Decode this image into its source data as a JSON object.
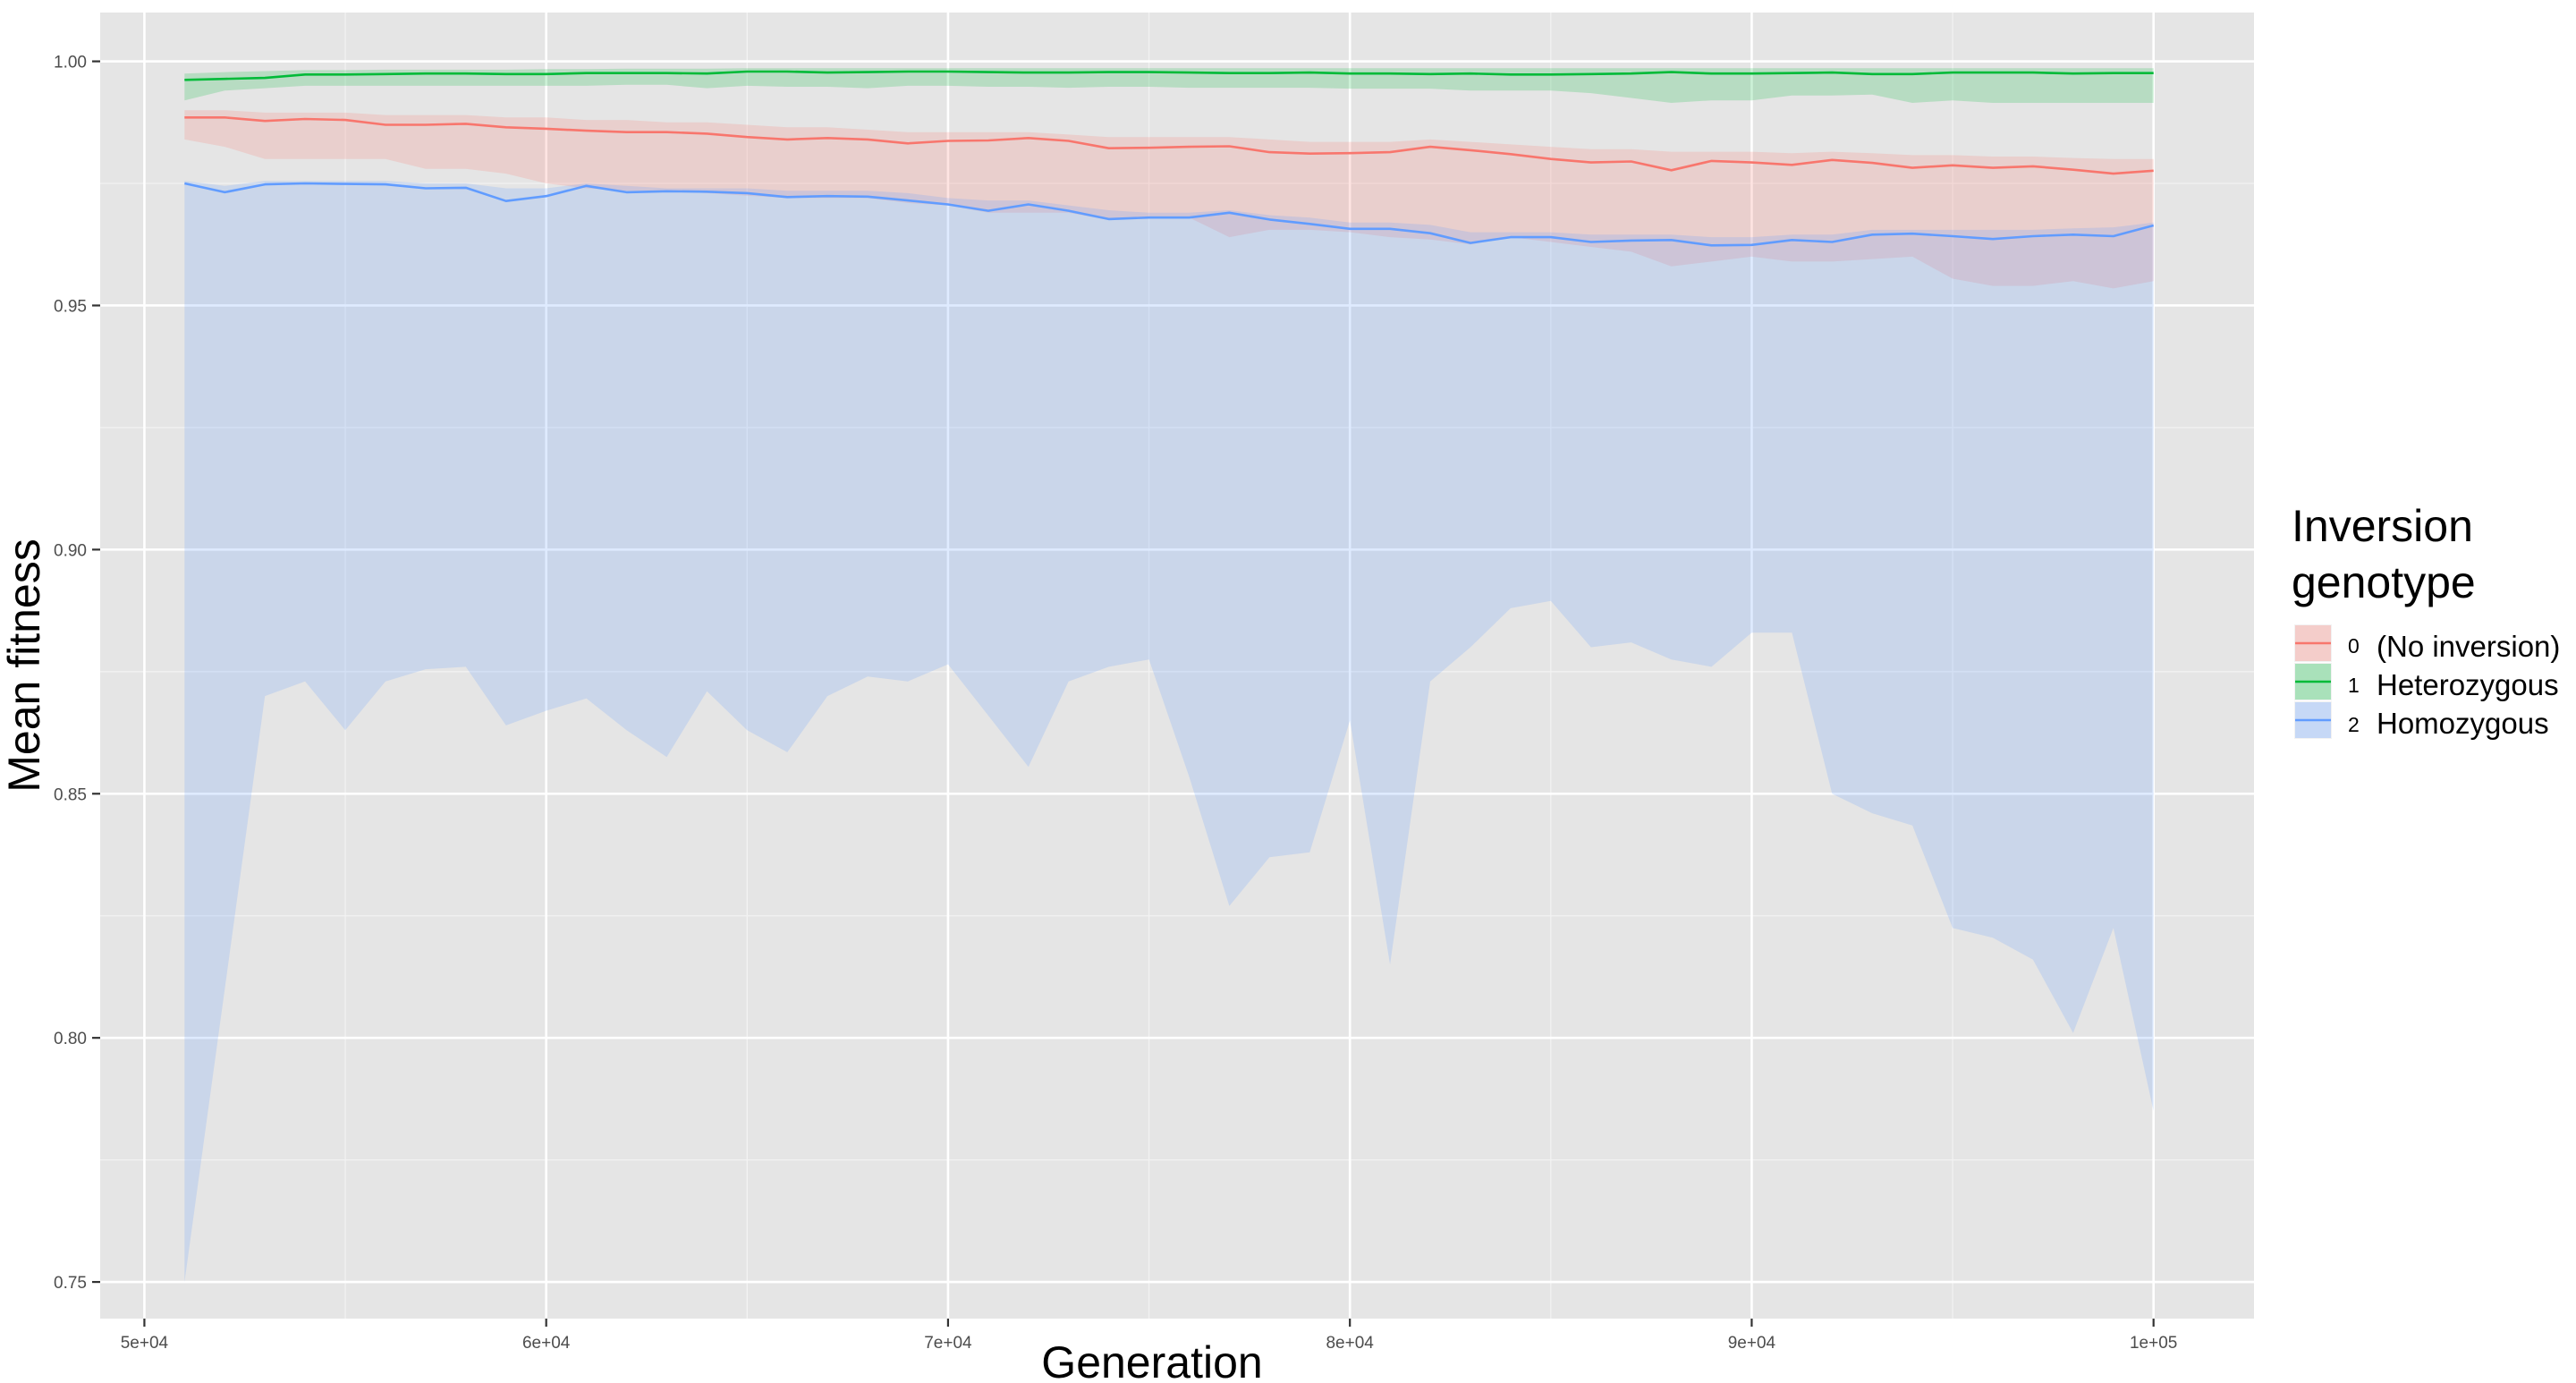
{
  "chart_data": {
    "type": "line",
    "title": "",
    "xlabel": "Generation",
    "ylabel": "Mean fitness",
    "xlim": [
      48900,
      102500
    ],
    "ylim": [
      0.7425,
      1.01
    ],
    "x_ticks": [
      50000,
      60000,
      70000,
      80000,
      90000,
      100000
    ],
    "x_tick_labels": [
      "5e+04",
      "6e+04",
      "7e+04",
      "8e+04",
      "9e+04",
      "1e+05"
    ],
    "y_ticks": [
      0.75,
      0.8,
      0.85,
      0.9,
      0.95,
      1.0
    ],
    "y_tick_labels": [
      "0.75",
      "0.80",
      "0.85",
      "0.90",
      "0.95",
      "1.00"
    ],
    "grid": true,
    "legend": {
      "title_lines": [
        "Inversion",
        "genotype"
      ],
      "position": "right",
      "entries": [
        {
          "code": "0",
          "label": "(No inversion)"
        },
        {
          "code": "1",
          "label": "Heterozygous"
        },
        {
          "code": "2",
          "label": "Homozygous"
        }
      ]
    },
    "x": [
      51000,
      52000,
      53000,
      54000,
      55000,
      56000,
      57000,
      58000,
      59000,
      60000,
      61000,
      62000,
      63000,
      64000,
      65000,
      66000,
      67000,
      68000,
      69000,
      70000,
      71000,
      72000,
      73000,
      74000,
      75000,
      76000,
      77000,
      78000,
      79000,
      80000,
      81000,
      82000,
      83000,
      84000,
      85000,
      86000,
      87000,
      88000,
      89000,
      90000,
      91000,
      92000,
      93000,
      94000,
      95000,
      96000,
      97000,
      98000,
      99000,
      100000
    ],
    "series": [
      {
        "code": "0",
        "color": "#F8766D",
        "ribbon_color": "#F8766D",
        "values": [
          0.9885,
          0.9885,
          0.9878,
          0.9882,
          0.988,
          0.987,
          0.987,
          0.9872,
          0.9865,
          0.9862,
          0.9858,
          0.9855,
          0.9855,
          0.9852,
          0.9845,
          0.984,
          0.9843,
          0.984,
          0.9832,
          0.9837,
          0.9838,
          0.9843,
          0.9837,
          0.9822,
          0.9823,
          0.9825,
          0.9826,
          0.9814,
          0.9811,
          0.9812,
          0.9814,
          0.9825,
          0.9818,
          0.981,
          0.98,
          0.9793,
          0.9795,
          0.9777,
          0.9796,
          0.9793,
          0.9788,
          0.9798,
          0.9792,
          0.9782,
          0.9787,
          0.9782,
          0.9785,
          0.9778,
          0.977,
          0.9776
        ],
        "lower": [
          0.984,
          0.9825,
          0.98,
          0.98,
          0.98,
          0.98,
          0.978,
          0.978,
          0.977,
          0.975,
          0.974,
          0.9735,
          0.9735,
          0.973,
          0.9725,
          0.972,
          0.972,
          0.972,
          0.971,
          0.9705,
          0.969,
          0.969,
          0.969,
          0.9675,
          0.968,
          0.968,
          0.964,
          0.9655,
          0.9655,
          0.965,
          0.964,
          0.9635,
          0.9625,
          0.964,
          0.963,
          0.962,
          0.961,
          0.958,
          0.959,
          0.96,
          0.959,
          0.959,
          0.9595,
          0.96,
          0.9555,
          0.954,
          0.954,
          0.955,
          0.9535,
          0.955
        ],
        "upper": [
          0.99,
          0.99,
          0.9895,
          0.9895,
          0.9895,
          0.989,
          0.989,
          0.989,
          0.9885,
          0.9885,
          0.988,
          0.988,
          0.9875,
          0.9875,
          0.987,
          0.9865,
          0.9865,
          0.986,
          0.9855,
          0.9855,
          0.9855,
          0.9855,
          0.985,
          0.9845,
          0.9845,
          0.9845,
          0.9845,
          0.984,
          0.9835,
          0.9835,
          0.9835,
          0.984,
          0.9835,
          0.983,
          0.9825,
          0.982,
          0.982,
          0.9815,
          0.9815,
          0.9815,
          0.9812,
          0.9815,
          0.9812,
          0.9808,
          0.9808,
          0.9805,
          0.9805,
          0.9802,
          0.98,
          0.98
        ]
      },
      {
        "code": "1",
        "color": "#00BA38",
        "ribbon_color": "#00BA38",
        "values": [
          0.9962,
          0.9964,
          0.9966,
          0.9973,
          0.9973,
          0.9974,
          0.9975,
          0.9975,
          0.9974,
          0.9974,
          0.9976,
          0.9976,
          0.9976,
          0.9975,
          0.9979,
          0.9979,
          0.9977,
          0.9978,
          0.9979,
          0.9979,
          0.9978,
          0.9977,
          0.9977,
          0.9978,
          0.9978,
          0.9977,
          0.9976,
          0.9976,
          0.9977,
          0.9975,
          0.9975,
          0.9974,
          0.9975,
          0.9973,
          0.9973,
          0.9974,
          0.9975,
          0.9978,
          0.9975,
          0.9975,
          0.9976,
          0.9977,
          0.9974,
          0.9974,
          0.9977,
          0.9977,
          0.9977,
          0.9975,
          0.9976,
          0.9976
        ],
        "lower": [
          0.992,
          0.994,
          0.9945,
          0.995,
          0.995,
          0.995,
          0.995,
          0.995,
          0.995,
          0.995,
          0.995,
          0.9952,
          0.9952,
          0.9945,
          0.995,
          0.9948,
          0.9948,
          0.9945,
          0.995,
          0.995,
          0.9948,
          0.9948,
          0.9946,
          0.9948,
          0.9948,
          0.9946,
          0.9946,
          0.9946,
          0.9946,
          0.9944,
          0.9944,
          0.9944,
          0.994,
          0.994,
          0.994,
          0.9935,
          0.9925,
          0.9915,
          0.992,
          0.992,
          0.993,
          0.993,
          0.9932,
          0.9915,
          0.992,
          0.9915,
          0.9915,
          0.9915,
          0.9915,
          0.9915
        ],
        "upper": [
          0.9975,
          0.9978,
          0.998,
          0.9982,
          0.9982,
          0.9983,
          0.9983,
          0.9983,
          0.9983,
          0.9984,
          0.9984,
          0.9985,
          0.9985,
          0.9985,
          0.9986,
          0.9986,
          0.9986,
          0.9986,
          0.9986,
          0.9986,
          0.9986,
          0.9986,
          0.9986,
          0.9986,
          0.9986,
          0.9986,
          0.9986,
          0.9986,
          0.9986,
          0.9986,
          0.9986,
          0.9986,
          0.9986,
          0.9986,
          0.9986,
          0.9986,
          0.9986,
          0.9986,
          0.9986,
          0.9986,
          0.9986,
          0.9986,
          0.9986,
          0.9986,
          0.9986,
          0.9986,
          0.9986,
          0.9986,
          0.9986,
          0.9986
        ]
      },
      {
        "code": "2",
        "color": "#619CFF",
        "ribbon_color": "#619CFF",
        "values": [
          0.975,
          0.9732,
          0.9748,
          0.975,
          0.9749,
          0.9748,
          0.974,
          0.9741,
          0.9714,
          0.9724,
          0.9745,
          0.9732,
          0.9734,
          0.9733,
          0.973,
          0.9722,
          0.9724,
          0.9723,
          0.9715,
          0.9707,
          0.9694,
          0.9707,
          0.9694,
          0.9677,
          0.968,
          0.968,
          0.969,
          0.9676,
          0.9667,
          0.9657,
          0.9657,
          0.9648,
          0.9628,
          0.964,
          0.964,
          0.963,
          0.9633,
          0.9634,
          0.9623,
          0.9624,
          0.9634,
          0.963,
          0.9645,
          0.9647,
          0.9642,
          0.9636,
          0.9642,
          0.9645,
          0.9642,
          0.9664
        ],
        "lower": [
          0.75,
          0.81,
          0.87,
          0.873,
          0.863,
          0.873,
          0.8755,
          0.876,
          0.864,
          0.867,
          0.8695,
          0.863,
          0.8575,
          0.871,
          0.863,
          0.8585,
          0.87,
          0.874,
          0.873,
          0.8765,
          0.866,
          0.8555,
          0.873,
          0.876,
          0.8775,
          0.8535,
          0.827,
          0.837,
          0.838,
          0.865,
          0.815,
          0.873,
          0.88,
          0.888,
          0.8895,
          0.88,
          0.881,
          0.8775,
          0.876,
          0.883,
          0.883,
          0.85,
          0.846,
          0.8435,
          0.8225,
          0.8205,
          0.816,
          0.801,
          0.8225,
          0.785
        ],
        "upper": [
          0.9755,
          0.9745,
          0.9755,
          0.9755,
          0.9755,
          0.9755,
          0.975,
          0.975,
          0.974,
          0.974,
          0.975,
          0.9745,
          0.974,
          0.974,
          0.974,
          0.9735,
          0.9735,
          0.9735,
          0.973,
          0.972,
          0.9715,
          0.9715,
          0.9705,
          0.9695,
          0.969,
          0.969,
          0.9695,
          0.9685,
          0.968,
          0.967,
          0.967,
          0.9665,
          0.965,
          0.965,
          0.965,
          0.9645,
          0.9645,
          0.9645,
          0.964,
          0.964,
          0.9645,
          0.9645,
          0.9655,
          0.9655,
          0.9655,
          0.9655,
          0.9655,
          0.9658,
          0.966,
          0.967
        ]
      }
    ]
  }
}
